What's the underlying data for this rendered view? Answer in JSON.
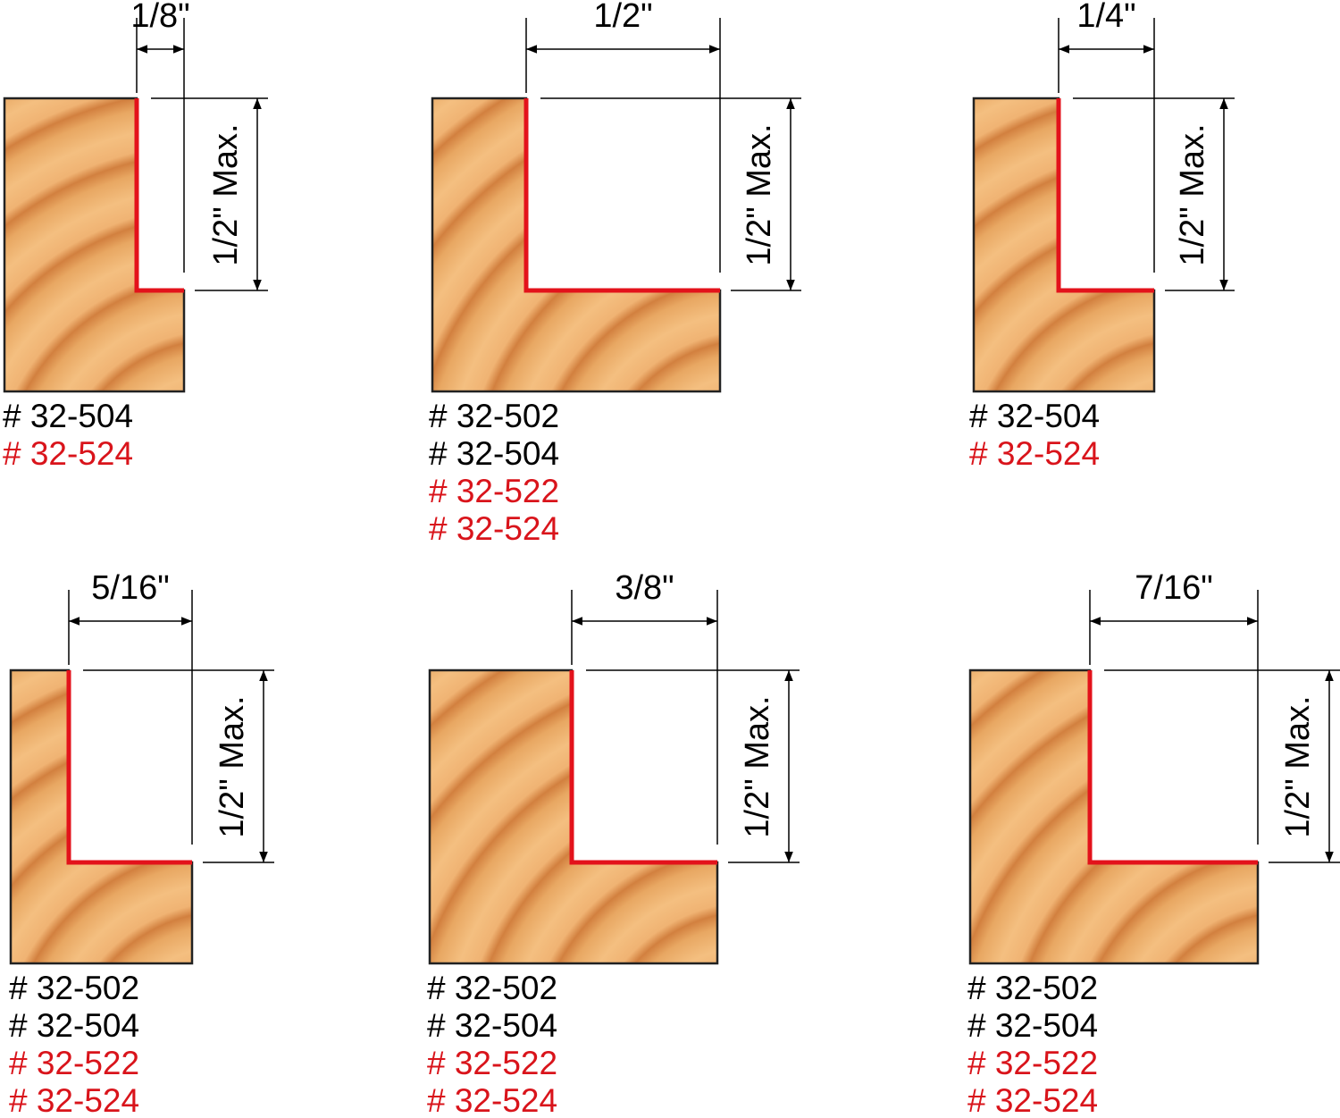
{
  "panels": [
    {
      "width": "1/8\"",
      "depth": "1/2\" Max.",
      "parts": [
        {
          "text": "# 32-504",
          "color": "#000000"
        },
        {
          "text": "# 32-524",
          "color": "#d9141b"
        }
      ]
    },
    {
      "width": "1/2\"",
      "depth": "1/2\" Max.",
      "parts": [
        {
          "text": "# 32-502",
          "color": "#000000"
        },
        {
          "text": "# 32-504",
          "color": "#000000"
        },
        {
          "text": "# 32-522",
          "color": "#d9141b"
        },
        {
          "text": "# 32-524",
          "color": "#d9141b"
        }
      ]
    },
    {
      "width": "1/4\"",
      "depth": "1/2\" Max.",
      "parts": [
        {
          "text": "# 32-504",
          "color": "#000000"
        },
        {
          "text": "# 32-524",
          "color": "#d9141b"
        }
      ]
    },
    {
      "width": "5/16\"",
      "depth": "1/2\" Max.",
      "parts": [
        {
          "text": "# 32-502",
          "color": "#000000"
        },
        {
          "text": "# 32-504",
          "color": "#000000"
        },
        {
          "text": "# 32-522",
          "color": "#d9141b"
        },
        {
          "text": "# 32-524",
          "color": "#d9141b"
        }
      ]
    },
    {
      "width": "3/8\"",
      "depth": "1/2\" Max.",
      "parts": [
        {
          "text": "# 32-502",
          "color": "#000000"
        },
        {
          "text": "# 32-504",
          "color": "#000000"
        },
        {
          "text": "# 32-522",
          "color": "#d9141b"
        },
        {
          "text": "# 32-524",
          "color": "#d9141b"
        }
      ]
    },
    {
      "width": "7/16\"",
      "depth": "1/2\" Max.",
      "parts": [
        {
          "text": "# 32-502",
          "color": "#000000"
        },
        {
          "text": "# 32-504",
          "color": "#000000"
        },
        {
          "text": "# 32-522",
          "color": "#d9141b"
        },
        {
          "text": "# 32-524",
          "color": "#d9141b"
        }
      ]
    }
  ]
}
